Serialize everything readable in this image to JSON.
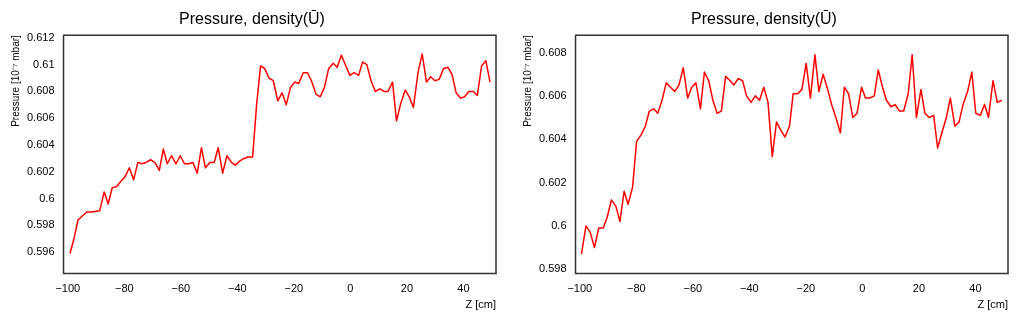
{
  "chart_data": [
    {
      "type": "line",
      "title": "Pressure, density(Ū)",
      "xlabel": "Z [cm]",
      "ylabel": "Pressure [10⁻⁷ mbar]",
      "xlim": [
        -101.5,
        51.5
      ],
      "xticks": [
        -100,
        -80,
        -60,
        -40,
        -20,
        0,
        20,
        40
      ],
      "ylim": [
        0.5944,
        0.6122
      ],
      "yticks": [
        0.596,
        0.598,
        0.6,
        0.602,
        0.604,
        0.606,
        0.608,
        0.61,
        0.612
      ],
      "grid": false,
      "legend": false,
      "line_style": "solid",
      "series": [
        {
          "color": "#ff0000",
          "x": [
            -99.2,
            -97.7,
            -96.4,
            -93.3,
            -91.6,
            -88.7,
            -87.1,
            -85.7,
            -84.3,
            -82.7,
            -80.8,
            -79.8,
            -78.2,
            -76.7,
            -75.2,
            -73.7,
            -72.3,
            -70.7,
            -69.2,
            -67.6,
            -66.2,
            -64.8,
            -63.3,
            -61.7,
            -60.2,
            -58.7,
            -57.2,
            -55.7,
            -54.2,
            -52.7,
            -51.3,
            -49.7,
            -48.2,
            -46.8,
            -45.2,
            -43.7,
            -42.1,
            -40.7,
            -39.2,
            -37.6,
            -36.2,
            -34.6,
            -33.2,
            -31.8,
            -30.3,
            -28.8,
            -27.3,
            -25.7,
            -24.2,
            -22.7,
            -21.2,
            -19.7,
            -18.3,
            -16.7,
            -15.2,
            -13.8,
            -12.2,
            -10.7,
            -9.2,
            -7.7,
            -6.1,
            -4.7,
            -3.2,
            -1.6,
            -0.2,
            1.3,
            2.9,
            4.3,
            5.8,
            7.3,
            8.8,
            10.4,
            11.8,
            13.3,
            14.9,
            16.3,
            17.8,
            19.4,
            20.8,
            22.3,
            23.9,
            25.4,
            26.9,
            28.4,
            29.9,
            31.4,
            32.9,
            34.5,
            35.9,
            37.4,
            39.0,
            40.4,
            41.9,
            43.5,
            44.9,
            46.4,
            47.9,
            49.4
          ],
          "values": [
            0.5959,
            0.5971,
            0.5984,
            0.599,
            0.599,
            0.5991,
            0.6005,
            0.5996,
            0.6008,
            0.6009,
            0.6014,
            0.6016,
            0.6023,
            0.6014,
            0.6027,
            0.6026,
            0.6027,
            0.6029,
            0.6027,
            0.6021,
            0.6037,
            0.6026,
            0.6032,
            0.6026,
            0.6032,
            0.6026,
            0.6026,
            0.6027,
            0.6019,
            0.6038,
            0.6023,
            0.6027,
            0.6027,
            0.6038,
            0.6019,
            0.6032,
            0.6027,
            0.6025,
            0.6028,
            0.603,
            0.6031,
            0.6031,
            0.607,
            0.6099,
            0.6097,
            0.609,
            0.6088,
            0.6073,
            0.6079,
            0.607,
            0.6083,
            0.6087,
            0.6086,
            0.6094,
            0.6094,
            0.6088,
            0.6078,
            0.6076,
            0.6083,
            0.6097,
            0.6101,
            0.6098,
            0.6107,
            0.6099,
            0.6092,
            0.6094,
            0.6092,
            0.6102,
            0.61,
            0.6088,
            0.608,
            0.6082,
            0.608,
            0.608,
            0.6087,
            0.6058,
            0.6071,
            0.6081,
            0.6076,
            0.6068,
            0.6094,
            0.6108,
            0.6087,
            0.6091,
            0.6088,
            0.6089,
            0.6097,
            0.6098,
            0.6093,
            0.6079,
            0.6075,
            0.6076,
            0.608,
            0.608,
            0.6077,
            0.6099,
            0.6103,
            0.6087
          ]
        }
      ]
    },
    {
      "type": "line",
      "title": "Pressure, density(Ū)",
      "xlabel": "Z [cm]",
      "ylabel": "Pressure [10⁻⁷ mbar]",
      "xlim": [
        -101.5,
        51.5
      ],
      "xticks": [
        -100,
        -80,
        -60,
        -40,
        -20,
        0,
        20,
        40
      ],
      "ylim": [
        0.5978,
        0.6088
      ],
      "yticks": [
        0.598,
        0.6,
        0.602,
        0.604,
        0.606,
        0.608
      ],
      "grid": false,
      "legend": false,
      "line_style": "solid",
      "series": [
        {
          "color": "#ff0000",
          "x": [
            -99.4,
            -97.8,
            -96.3,
            -94.8,
            -93.3,
            -91.7,
            -90.3,
            -88.8,
            -87.2,
            -85.8,
            -84.3,
            -82.9,
            -81.3,
            -79.9,
            -78.3,
            -76.8,
            -75.4,
            -73.8,
            -72.4,
            -70.9,
            -69.4,
            -67.9,
            -66.4,
            -64.9,
            -63.4,
            -61.8,
            -60.4,
            -58.9,
            -57.3,
            -55.9,
            -54.4,
            -52.9,
            -51.4,
            -49.9,
            -48.4,
            -46.8,
            -45.5,
            -43.9,
            -42.4,
            -41.0,
            -39.4,
            -37.9,
            -36.4,
            -34.9,
            -33.4,
            -31.9,
            -30.4,
            -28.8,
            -27.4,
            -25.8,
            -24.5,
            -22.9,
            -21.4,
            -19.9,
            -18.4,
            -16.8,
            -15.4,
            -13.9,
            -12.3,
            -10.9,
            -9.4,
            -7.8,
            -6.4,
            -4.9,
            -3.4,
            -1.9,
            -0.3,
            1.1,
            2.6,
            4.2,
            5.6,
            7.1,
            8.5,
            10.1,
            11.6,
            13.1,
            14.6,
            16.2,
            17.6,
            19.1,
            20.7,
            22.1,
            23.6,
            25.2,
            26.6,
            28.1,
            29.7,
            31.1,
            32.7,
            34.2,
            35.6,
            37.2,
            38.7,
            40.1,
            41.7,
            43.2,
            44.6,
            46.2,
            47.7,
            49.3
          ],
          "values": [
            0.5987,
            0.6,
            0.5997,
            0.599,
            0.5999,
            0.5999,
            0.6004,
            0.6012,
            0.6009,
            0.6002,
            0.6016,
            0.601,
            0.6018,
            0.6039,
            0.6042,
            0.6046,
            0.6053,
            0.6054,
            0.6052,
            0.6058,
            0.6066,
            0.6064,
            0.6062,
            0.6065,
            0.6073,
            0.6059,
            0.6064,
            0.6066,
            0.6054,
            0.6071,
            0.6067,
            0.6058,
            0.6052,
            0.6053,
            0.6069,
            0.6067,
            0.6065,
            0.6068,
            0.6067,
            0.606,
            0.6057,
            0.606,
            0.6058,
            0.6064,
            0.6057,
            0.6032,
            0.6048,
            0.6044,
            0.6041,
            0.6046,
            0.6061,
            0.6061,
            0.6063,
            0.6075,
            0.6059,
            0.6079,
            0.6062,
            0.607,
            0.6063,
            0.6056,
            0.605,
            0.6043,
            0.6064,
            0.6061,
            0.605,
            0.6052,
            0.6064,
            0.6059,
            0.6059,
            0.606,
            0.6072,
            0.6064,
            0.6058,
            0.6055,
            0.6056,
            0.6053,
            0.6053,
            0.6061,
            0.6079,
            0.605,
            0.6063,
            0.6052,
            0.605,
            0.6051,
            0.6036,
            0.6043,
            0.605,
            0.6059,
            0.6046,
            0.6048,
            0.6056,
            0.6062,
            0.6071,
            0.6052,
            0.6051,
            0.6056,
            0.605,
            0.6067,
            0.6057,
            0.6058
          ]
        }
      ]
    }
  ]
}
